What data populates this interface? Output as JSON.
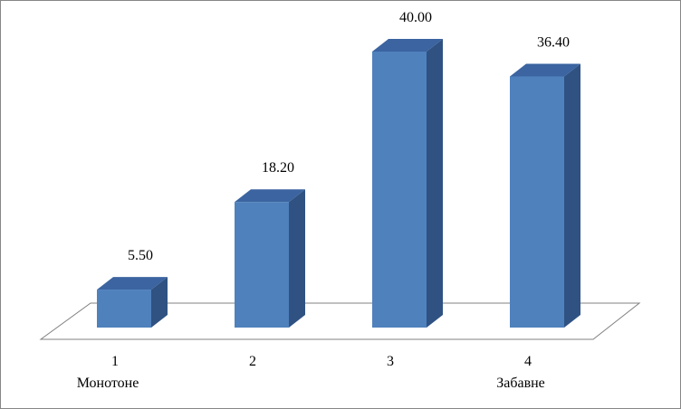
{
  "chart_data": {
    "type": "bar3d",
    "categories": [
      "1",
      "2",
      "3",
      "4"
    ],
    "sublabels": [
      "Монотоне",
      null,
      null,
      "Забавне"
    ],
    "values": [
      5.5,
      18.2,
      40.0,
      36.4
    ],
    "value_labels": [
      "5.50",
      "18.20",
      "40.00",
      "36.40"
    ],
    "color": "#4f81bd"
  }
}
